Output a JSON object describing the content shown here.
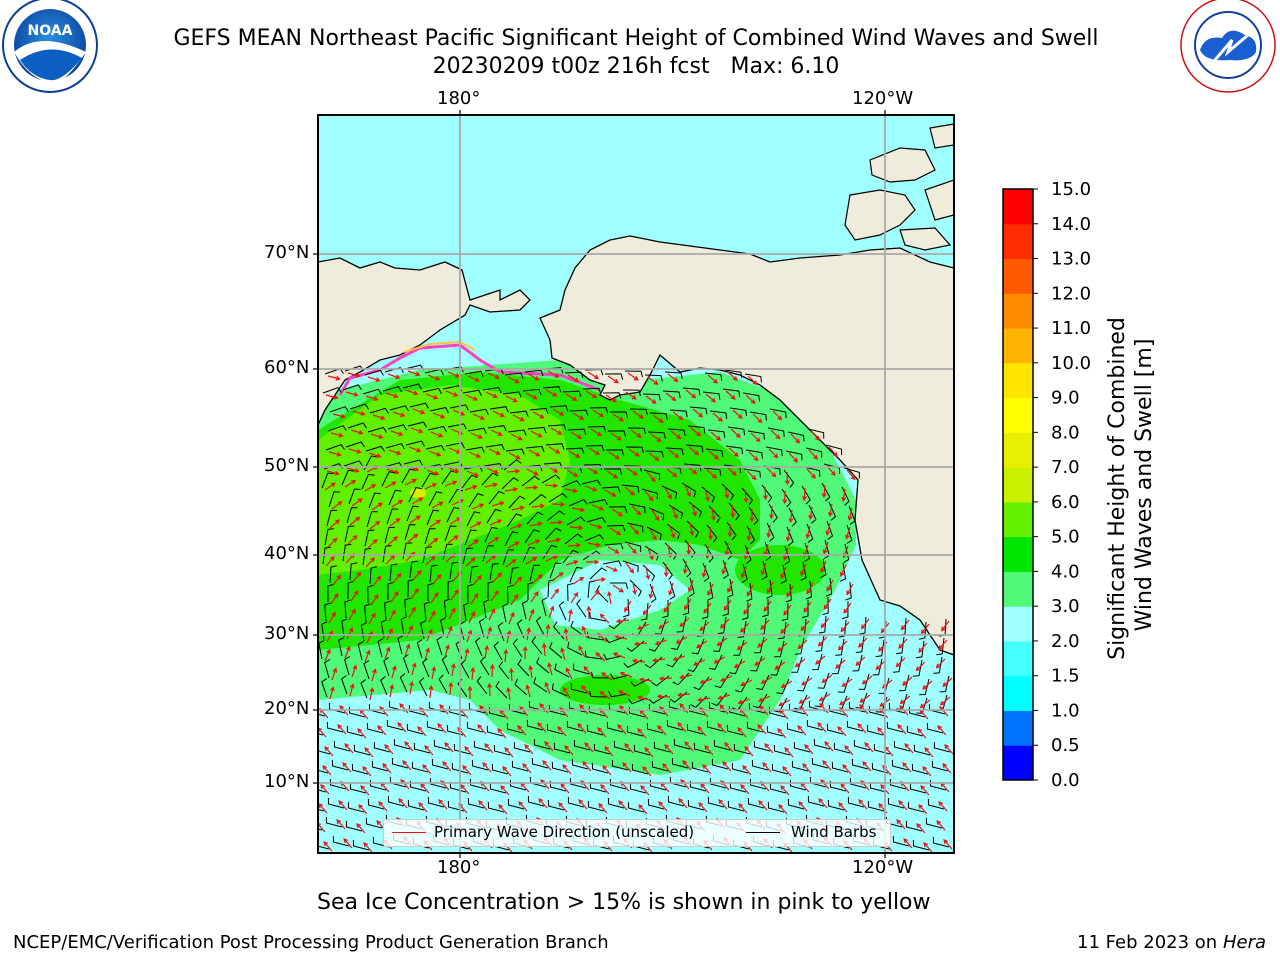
{
  "header": {
    "title_line1": "GEFS MEAN Northeast Pacific Significant Height of Combined Wind Waves and Swell",
    "title_line2": "20230209 t00z 216h fcst   Max: 6.10",
    "left_logo_text": "NOAA",
    "left_logo_ring": "NATIONAL OCEANIC AND ATMOSPHERIC ADMINISTRATION · U.S. DEPARTMENT OF COMMERCE",
    "right_logo_ring": "NATIONAL WEATHER SERVICE"
  },
  "map": {
    "lon_ticks_top": [
      "180°",
      "120°W"
    ],
    "lon_ticks_bottom": [
      "180°",
      "120°W"
    ],
    "lat_ticks": [
      "70°N",
      "60°N",
      "50°N",
      "40°N",
      "30°N",
      "20°N",
      "10°N"
    ],
    "colors": {
      "land": "#efecdc",
      "ocean_low": "#a0ffff",
      "ocean_mid": "#50fa78",
      "ocean_high": "#20e600",
      "ocean_peak": "#60f000",
      "wave_arrow": "#ee1111",
      "wind_barb": "#000000"
    }
  },
  "legend": {
    "primary_wave": "Primary Wave Direction (unscaled)",
    "wind_barbs": "Wind Barbs"
  },
  "colorbar": {
    "title_line1": "Significant Height of Combined",
    "title_line2": "Wind Waves and Swell [m]",
    "levels": [
      "0.0",
      "0.5",
      "1.0",
      "1.5",
      "2.0",
      "3.0",
      "4.0",
      "5.0",
      "6.0",
      "7.0",
      "8.0",
      "9.0",
      "10.0",
      "11.0",
      "12.0",
      "13.0",
      "14.0",
      "15.0"
    ],
    "colors": [
      "#0000ff",
      "#0073ff",
      "#00ffff",
      "#46ffff",
      "#a0ffff",
      "#50fa78",
      "#00e600",
      "#64f000",
      "#c8f000",
      "#e6f000",
      "#ffff00",
      "#ffe600",
      "#ffb400",
      "#ff8c00",
      "#ff5a00",
      "#ff2d00",
      "#ff0000"
    ]
  },
  "caption": "Sea Ice Concentration > 15% is shown in pink to yellow",
  "footer": {
    "left": "NCEP/EMC/Verification Post Processing Product Generation Branch",
    "right_date": "11 Feb 2023 on",
    "right_host": "Hera"
  }
}
